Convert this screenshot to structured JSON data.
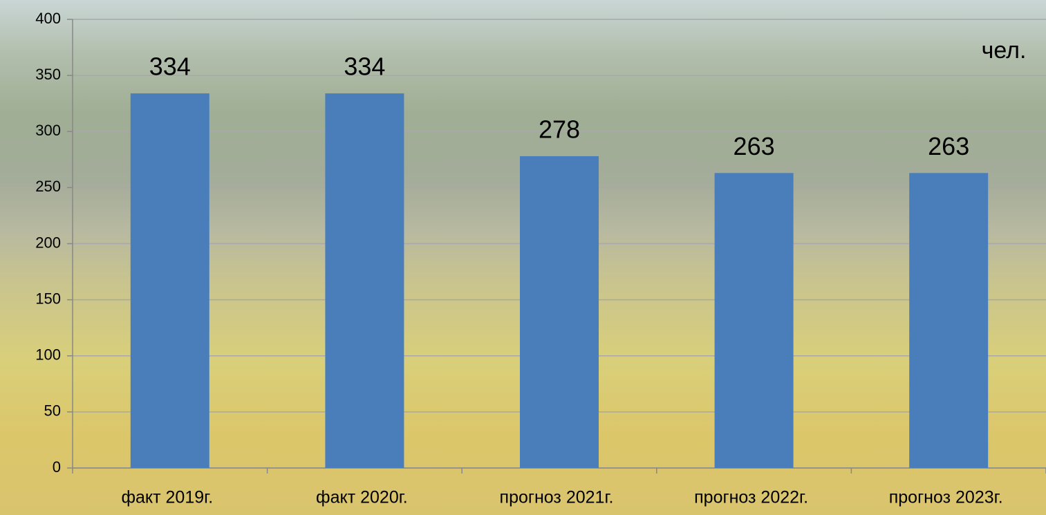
{
  "chart_data": {
    "type": "bar",
    "unit_label": "чел.",
    "categories": [
      "факт 2019г.",
      "факт 2020г.",
      "прогноз 2021г.",
      "прогноз 2022г.",
      "прогноз 2023г."
    ],
    "values": [
      334,
      334,
      278,
      263,
      263
    ],
    "color": "#4a7ebb",
    "ylim": [
      0,
      400
    ],
    "yticks": [
      0,
      50,
      100,
      150,
      200,
      250,
      300,
      350,
      400
    ],
    "grid": true
  }
}
